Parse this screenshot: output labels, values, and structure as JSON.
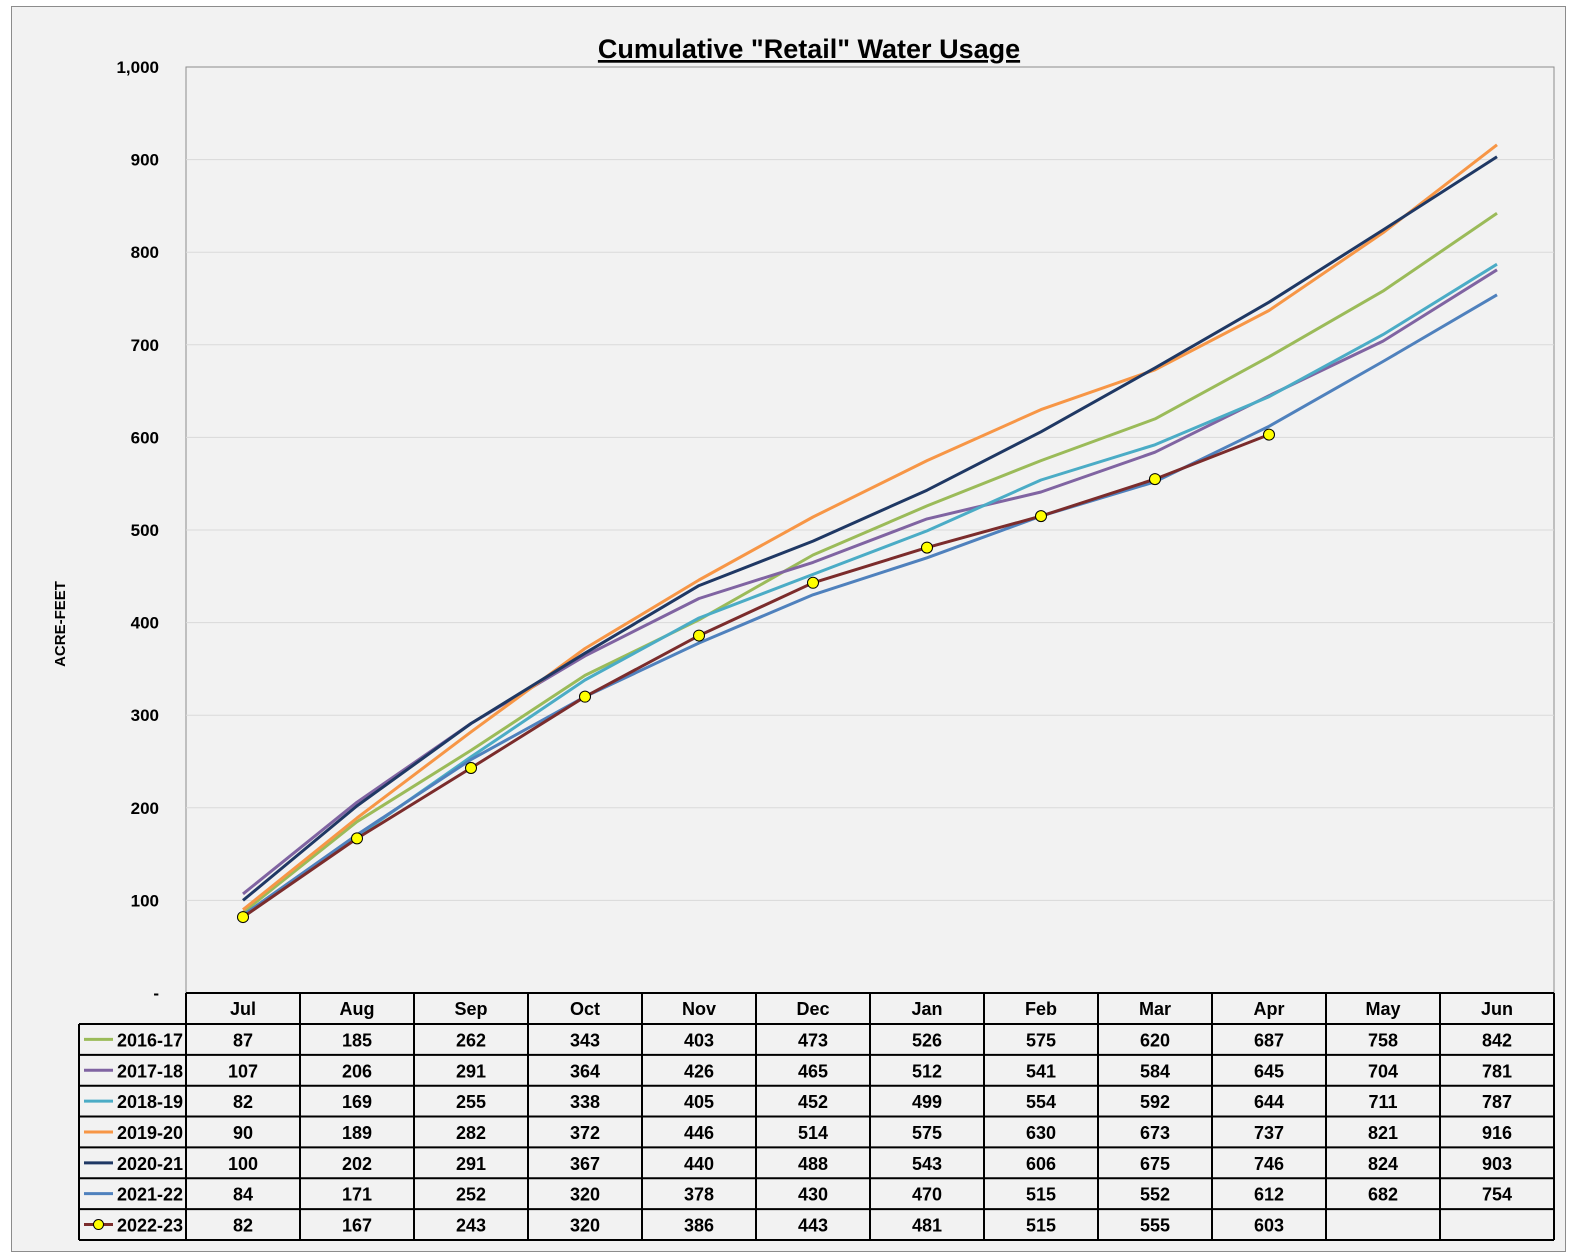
{
  "chart_data": {
    "type": "line",
    "title": "Cumulative \"Retail\" Water Usage",
    "xlabel": "",
    "ylabel": "ACRE-FEET",
    "ylim": [
      0,
      1000
    ],
    "yticks": [
      {
        "value": 0,
        "label": "-"
      },
      {
        "value": 100,
        "label": "100"
      },
      {
        "value": 200,
        "label": "200"
      },
      {
        "value": 300,
        "label": "300"
      },
      {
        "value": 400,
        "label": "400"
      },
      {
        "value": 500,
        "label": "500"
      },
      {
        "value": 600,
        "label": "600"
      },
      {
        "value": 700,
        "label": "700"
      },
      {
        "value": 800,
        "label": "800"
      },
      {
        "value": 900,
        "label": "900"
      },
      {
        "value": 1000,
        "label": "1,000"
      }
    ],
    "grid": true,
    "legend": "data-table",
    "categories": [
      "Jul",
      "Aug",
      "Sep",
      "Oct",
      "Nov",
      "Dec",
      "Jan",
      "Feb",
      "Mar",
      "Apr",
      "May",
      "Jun"
    ],
    "series": [
      {
        "name": "2016-17",
        "color": "#9bbb59",
        "marker": false,
        "values": [
          87,
          185,
          262,
          343,
          403,
          473,
          526,
          575,
          620,
          687,
          758,
          842
        ]
      },
      {
        "name": "2017-18",
        "color": "#8064a2",
        "marker": false,
        "values": [
          107,
          206,
          291,
          364,
          426,
          465,
          512,
          541,
          584,
          645,
          704,
          781
        ]
      },
      {
        "name": "2018-19",
        "color": "#4bacc6",
        "marker": false,
        "values": [
          82,
          169,
          255,
          338,
          405,
          452,
          499,
          554,
          592,
          644,
          711,
          787
        ]
      },
      {
        "name": "2019-20",
        "color": "#f79646",
        "marker": false,
        "values": [
          90,
          189,
          282,
          372,
          446,
          514,
          575,
          630,
          673,
          737,
          821,
          916
        ]
      },
      {
        "name": "2020-21",
        "color": "#1f3864",
        "marker": false,
        "values": [
          100,
          202,
          291,
          367,
          440,
          488,
          543,
          606,
          675,
          746,
          824,
          903
        ]
      },
      {
        "name": "2021-22",
        "color": "#4f81bd",
        "marker": false,
        "values": [
          84,
          171,
          252,
          320,
          378,
          430,
          470,
          515,
          552,
          612,
          682,
          754
        ]
      },
      {
        "name": "2022-23",
        "color": "#7b2c2c",
        "marker": true,
        "marker_color": "#ffff00",
        "values": [
          82,
          167,
          243,
          320,
          386,
          443,
          481,
          515,
          555,
          603,
          null,
          null
        ]
      }
    ]
  }
}
